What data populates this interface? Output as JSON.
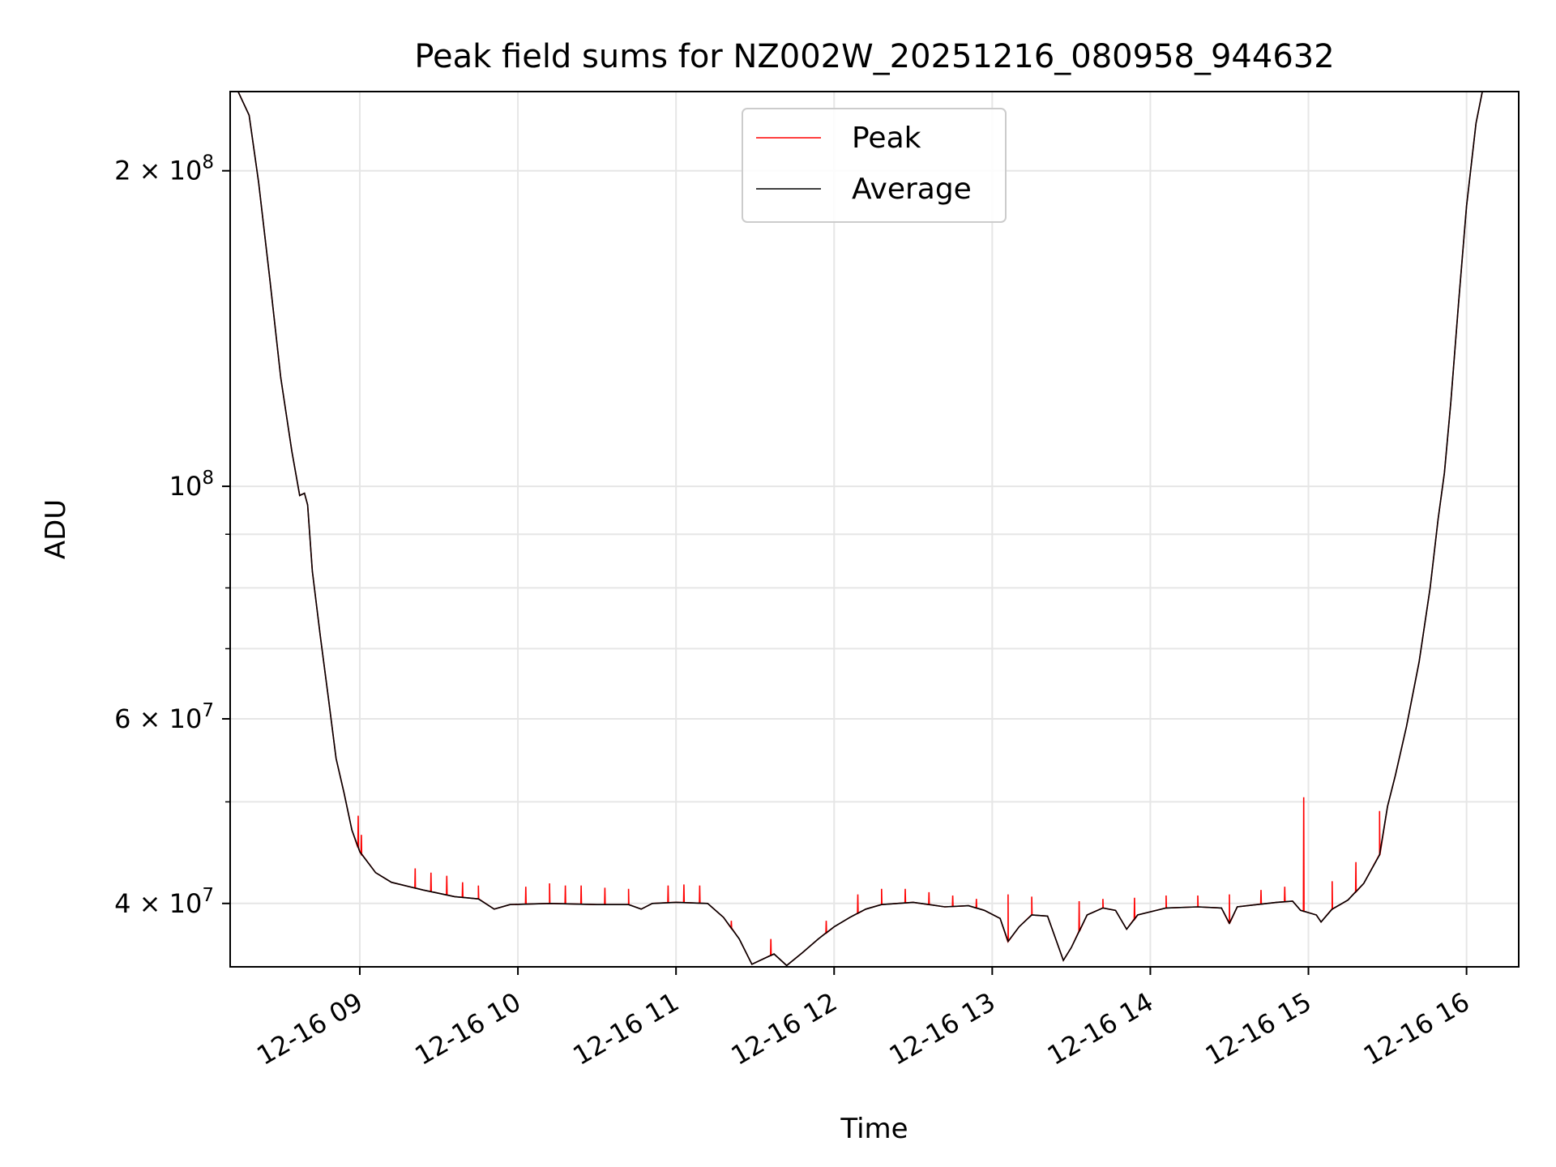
{
  "chart_data": {
    "type": "line",
    "title": "Peak field sums for NZ002W_20251216_080958_944632",
    "xlabel": "Time",
    "ylabel": "ADU",
    "yscale": "log",
    "xlim": [
      8.18,
      16.33
    ],
    "ylim": [
      34800000,
      238000000
    ],
    "grid": true,
    "legend_position": "top-center",
    "x_ticks": [
      {
        "value": 9,
        "label": "12-16 09"
      },
      {
        "value": 10,
        "label": "12-16 10"
      },
      {
        "value": 11,
        "label": "12-16 11"
      },
      {
        "value": 12,
        "label": "12-16 12"
      },
      {
        "value": 13,
        "label": "12-16 13"
      },
      {
        "value": 14,
        "label": "12-16 14"
      },
      {
        "value": 15,
        "label": "12-16 15"
      },
      {
        "value": 16,
        "label": "12-16 16"
      }
    ],
    "y_major_ticks": [
      {
        "value": 40000000,
        "mantissa": "4",
        "exponent": "7"
      },
      {
        "value": 60000000,
        "mantissa": "6",
        "exponent": "7"
      },
      {
        "value": 100000000,
        "mantissa": "",
        "exponent": "8"
      },
      {
        "value": 200000000,
        "mantissa": "2",
        "exponent": "8"
      }
    ],
    "y_minor_ticks": [
      50000000,
      70000000,
      80000000,
      90000000
    ],
    "series": [
      {
        "name": "Peak",
        "color": "#ff0000",
        "spikes": [
          [
            8.99,
            48500000
          ],
          [
            9.01,
            46500000
          ],
          [
            9.35,
            43200000
          ],
          [
            9.45,
            42800000
          ],
          [
            9.55,
            42500000
          ],
          [
            9.65,
            41900000
          ],
          [
            9.75,
            41600000
          ],
          [
            10.05,
            41500000
          ],
          [
            10.2,
            41800000
          ],
          [
            10.3,
            41600000
          ],
          [
            10.4,
            41600000
          ],
          [
            10.55,
            41400000
          ],
          [
            10.7,
            41300000
          ],
          [
            10.95,
            41600000
          ],
          [
            11.05,
            41700000
          ],
          [
            11.15,
            41600000
          ],
          [
            11.35,
            38500000
          ],
          [
            11.6,
            37000000
          ],
          [
            11.95,
            38500000
          ],
          [
            12.15,
            40800000
          ],
          [
            12.3,
            41300000
          ],
          [
            12.45,
            41300000
          ],
          [
            12.6,
            41000000
          ],
          [
            12.75,
            40700000
          ],
          [
            12.9,
            40400000
          ],
          [
            13.1,
            40800000
          ],
          [
            13.25,
            40600000
          ],
          [
            13.55,
            40200000
          ],
          [
            13.7,
            40400000
          ],
          [
            13.9,
            40500000
          ],
          [
            14.1,
            40700000
          ],
          [
            14.3,
            40700000
          ],
          [
            14.5,
            40800000
          ],
          [
            14.7,
            41200000
          ],
          [
            14.85,
            41500000
          ],
          [
            14.97,
            50500000
          ],
          [
            15.15,
            42000000
          ],
          [
            15.3,
            43800000
          ],
          [
            15.45,
            49000000
          ]
        ]
      },
      {
        "name": "Average",
        "color": "#000000",
        "points": [
          [
            8.18,
            238000000
          ],
          [
            8.23,
            238000000
          ],
          [
            8.3,
            226000000
          ],
          [
            8.36,
            195000000
          ],
          [
            8.43,
            158000000
          ],
          [
            8.5,
            127000000
          ],
          [
            8.57,
            108000000
          ],
          [
            8.62,
            98000000
          ],
          [
            8.65,
            98500000
          ],
          [
            8.67,
            96000000
          ],
          [
            8.7,
            83000000
          ],
          [
            8.75,
            72000000
          ],
          [
            8.8,
            63000000
          ],
          [
            8.85,
            55000000
          ],
          [
            8.9,
            51000000
          ],
          [
            8.95,
            47000000
          ],
          [
            9.0,
            44800000
          ],
          [
            9.1,
            42800000
          ],
          [
            9.2,
            41900000
          ],
          [
            9.4,
            41200000
          ],
          [
            9.6,
            40600000
          ],
          [
            9.75,
            40400000
          ],
          [
            9.85,
            39500000
          ],
          [
            9.95,
            39900000
          ],
          [
            10.2,
            40000000
          ],
          [
            10.5,
            39900000
          ],
          [
            10.7,
            39900000
          ],
          [
            10.78,
            39500000
          ],
          [
            10.85,
            40000000
          ],
          [
            11.0,
            40100000
          ],
          [
            11.2,
            40000000
          ],
          [
            11.3,
            38800000
          ],
          [
            11.4,
            37000000
          ],
          [
            11.48,
            35000000
          ],
          [
            11.55,
            35400000
          ],
          [
            11.62,
            35800000
          ],
          [
            11.7,
            34900000
          ],
          [
            11.8,
            35900000
          ],
          [
            11.9,
            37000000
          ],
          [
            12.0,
            38000000
          ],
          [
            12.1,
            38800000
          ],
          [
            12.2,
            39500000
          ],
          [
            12.3,
            39900000
          ],
          [
            12.5,
            40100000
          ],
          [
            12.7,
            39700000
          ],
          [
            12.85,
            39800000
          ],
          [
            12.95,
            39400000
          ],
          [
            13.05,
            38700000
          ],
          [
            13.1,
            36800000
          ],
          [
            13.17,
            38000000
          ],
          [
            13.25,
            39000000
          ],
          [
            13.35,
            38900000
          ],
          [
            13.45,
            35300000
          ],
          [
            13.5,
            36300000
          ],
          [
            13.6,
            39000000
          ],
          [
            13.7,
            39600000
          ],
          [
            13.78,
            39400000
          ],
          [
            13.85,
            37800000
          ],
          [
            13.92,
            39000000
          ],
          [
            14.1,
            39600000
          ],
          [
            14.3,
            39700000
          ],
          [
            14.45,
            39600000
          ],
          [
            14.5,
            38300000
          ],
          [
            14.55,
            39700000
          ],
          [
            14.8,
            40100000
          ],
          [
            14.9,
            40200000
          ],
          [
            14.95,
            39400000
          ],
          [
            15.05,
            39000000
          ],
          [
            15.08,
            38400000
          ],
          [
            15.15,
            39500000
          ],
          [
            15.25,
            40300000
          ],
          [
            15.35,
            41800000
          ],
          [
            15.45,
            44500000
          ],
          [
            15.5,
            49500000
          ],
          [
            15.55,
            53000000
          ],
          [
            15.62,
            59000000
          ],
          [
            15.7,
            68000000
          ],
          [
            15.77,
            80000000
          ],
          [
            15.82,
            93000000
          ],
          [
            15.86,
            103000000
          ],
          [
            15.9,
            120000000
          ],
          [
            15.95,
            150000000
          ],
          [
            16.0,
            185000000
          ],
          [
            16.06,
            222000000
          ],
          [
            16.1,
            238000000
          ],
          [
            16.33,
            238000000
          ]
        ]
      }
    ]
  }
}
